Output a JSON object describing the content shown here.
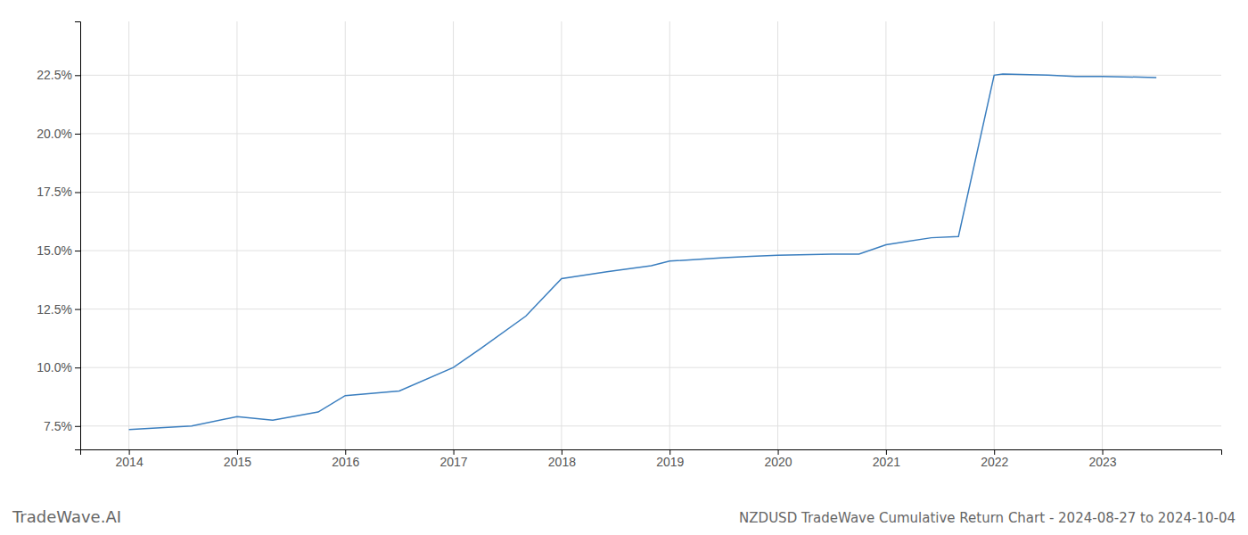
{
  "chart_data": {
    "type": "line",
    "title": "NZDUSD TradeWave Cumulative Return Chart - 2024-08-27 to 2024-10-04",
    "annotations": [
      "TradeWave.AI"
    ],
    "x": [
      2014.0,
      2014.58,
      2015.0,
      2015.33,
      2015.75,
      2016.0,
      2016.5,
      2017.0,
      2017.25,
      2017.67,
      2018.0,
      2018.42,
      2018.83,
      2019.0,
      2019.5,
      2019.75,
      2020.0,
      2020.5,
      2020.75,
      2021.0,
      2021.42,
      2021.67,
      2022.0,
      2022.08,
      2022.5,
      2022.75,
      2023.0,
      2023.5
    ],
    "values": [
      7.35,
      7.5,
      7.9,
      7.75,
      8.1,
      8.8,
      9.0,
      10.0,
      10.8,
      12.2,
      13.8,
      14.1,
      14.35,
      14.55,
      14.7,
      14.75,
      14.8,
      14.85,
      14.85,
      15.25,
      15.55,
      15.6,
      22.5,
      22.55,
      22.5,
      22.45,
      22.45,
      22.4
    ],
    "color": "#3a7ebf",
    "xlim": [
      2013.55,
      2024.1
    ],
    "ylim": [
      6.5,
      24.8
    ],
    "xticks": [
      2014,
      2015,
      2016,
      2017,
      2018,
      2019,
      2020,
      2021,
      2022,
      2023
    ],
    "yticks": [
      {
        "value": 7.5,
        "label": "7.5%"
      },
      {
        "value": 10.0,
        "label": "10.0%"
      },
      {
        "value": 12.5,
        "label": "12.5%"
      },
      {
        "value": 15.0,
        "label": "15.0%"
      },
      {
        "value": 17.5,
        "label": "17.5%"
      },
      {
        "value": 20.0,
        "label": "20.0%"
      },
      {
        "value": 22.5,
        "label": "22.5%"
      }
    ],
    "grid": true
  }
}
